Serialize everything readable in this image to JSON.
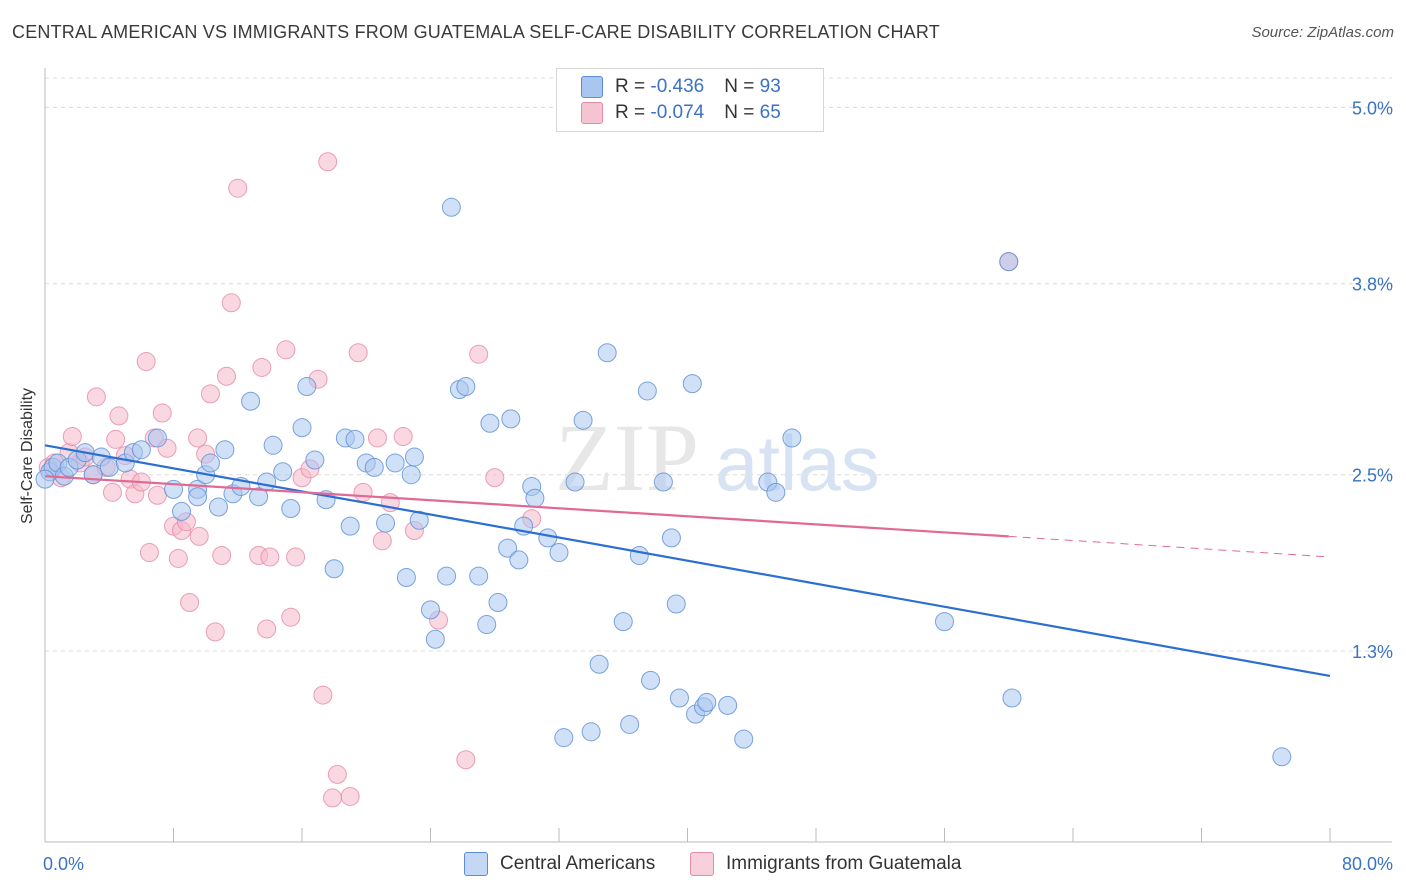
{
  "title": "CENTRAL AMERICAN VS IMMIGRANTS FROM GUATEMALA SELF-CARE DISABILITY CORRELATION CHART",
  "source": "Source: ZipAtlas.com",
  "watermark": {
    "zip": "ZIP",
    "atlas": "atlas"
  },
  "legend": {
    "rows": [
      {
        "r_label": "R = ",
        "r_value": "-0.436",
        "n_label": "N = ",
        "n_value": "93"
      },
      {
        "r_label": "R = ",
        "r_value": "-0.074",
        "n_label": "N = ",
        "n_value": "65"
      }
    ]
  },
  "bottom_legend": [
    "Central Americans",
    "Immigrants from Guatemala"
  ],
  "colors": {
    "blue_fill": "#a9c6f0",
    "blue_stroke": "#5b8ed6",
    "blue_line": "#2d6fd0",
    "pink_fill": "#f5b8cb",
    "pink_stroke": "#e58aa8",
    "pink_line": "#e06a95",
    "axis_text": "#3a72c6",
    "grid": "#dcdcdc"
  },
  "chart_data": {
    "type": "scatter",
    "title": "CENTRAL AMERICAN VS IMMIGRANTS FROM GUATEMALA SELF-CARE DISABILITY CORRELATION CHART",
    "xlabel": "",
    "ylabel": "Self-Care Disability",
    "xlim": [
      0,
      80
    ],
    "ylim": [
      0.0,
      5.2
    ],
    "x_tick_labels": [
      "0.0%",
      "80.0%"
    ],
    "y_ticks": [
      1.3,
      2.5,
      3.8,
      5.0
    ],
    "y_tick_labels": [
      "1.3%",
      "2.5%",
      "3.8%",
      "5.0%"
    ],
    "grid": "horizontal dashed",
    "legend_position": "top-center",
    "series": [
      {
        "name": "Central Americans",
        "r": -0.436,
        "n": 93,
        "trend": {
          "x": [
            0,
            80
          ],
          "y": [
            2.7,
            1.13
          ]
        },
        "points": [
          [
            0.3,
            2.52
          ],
          [
            0.5,
            2.55
          ],
          [
            0.8,
            2.58
          ],
          [
            1.2,
            2.49
          ],
          [
            1.5,
            2.55
          ],
          [
            2.0,
            2.6
          ],
          [
            2.5,
            2.65
          ],
          [
            3.0,
            2.5
          ],
          [
            3.5,
            2.62
          ],
          [
            4.0,
            2.55
          ],
          [
            5.0,
            2.58
          ],
          [
            5.5,
            2.65
          ],
          [
            6.0,
            2.67
          ],
          [
            7.0,
            2.75
          ],
          [
            8.0,
            2.4
          ],
          [
            8.5,
            2.25
          ],
          [
            9.5,
            2.4
          ],
          [
            9.5,
            2.35
          ],
          [
            10.0,
            2.5
          ],
          [
            10.3,
            2.58
          ],
          [
            10.8,
            2.28
          ],
          [
            11.2,
            2.67
          ],
          [
            11.7,
            2.37
          ],
          [
            12.2,
            2.42
          ],
          [
            12.8,
            3.0
          ],
          [
            13.3,
            2.35
          ],
          [
            13.8,
            2.45
          ],
          [
            14.2,
            2.7
          ],
          [
            14.8,
            2.52
          ],
          [
            15.3,
            2.27
          ],
          [
            16.0,
            2.82
          ],
          [
            16.3,
            3.1
          ],
          [
            16.8,
            2.6
          ],
          [
            17.5,
            2.33
          ],
          [
            18.0,
            1.86
          ],
          [
            18.7,
            2.75
          ],
          [
            19.0,
            2.15
          ],
          [
            19.3,
            2.74
          ],
          [
            20.0,
            2.58
          ],
          [
            20.5,
            2.55
          ],
          [
            21.2,
            2.17
          ],
          [
            21.8,
            2.58
          ],
          [
            22.5,
            1.8
          ],
          [
            22.8,
            2.5
          ],
          [
            23.0,
            2.62
          ],
          [
            23.3,
            2.19
          ],
          [
            24.0,
            1.58
          ],
          [
            24.3,
            1.38
          ],
          [
            25.0,
            1.81
          ],
          [
            25.3,
            4.32
          ],
          [
            25.8,
            3.08
          ],
          [
            26.2,
            3.1
          ],
          [
            27.0,
            1.81
          ],
          [
            27.5,
            1.48
          ],
          [
            27.7,
            2.85
          ],
          [
            28.2,
            1.63
          ],
          [
            28.8,
            2.0
          ],
          [
            29.0,
            2.88
          ],
          [
            29.5,
            1.92
          ],
          [
            29.8,
            2.15
          ],
          [
            30.3,
            2.42
          ],
          [
            30.5,
            2.34
          ],
          [
            31.3,
            2.07
          ],
          [
            32.0,
            1.97
          ],
          [
            32.3,
            0.71
          ],
          [
            33.0,
            2.45
          ],
          [
            33.5,
            2.87
          ],
          [
            34.0,
            0.75
          ],
          [
            34.5,
            1.21
          ],
          [
            35.0,
            3.33
          ],
          [
            36.0,
            1.5
          ],
          [
            36.4,
            0.8
          ],
          [
            37.0,
            1.95
          ],
          [
            37.5,
            3.07
          ],
          [
            37.7,
            1.1
          ],
          [
            38.5,
            2.45
          ],
          [
            39.0,
            2.07
          ],
          [
            39.3,
            1.62
          ],
          [
            39.5,
            0.98
          ],
          [
            40.3,
            3.12
          ],
          [
            40.5,
            0.87
          ],
          [
            41.0,
            0.92
          ],
          [
            41.2,
            0.95
          ],
          [
            42.5,
            0.93
          ],
          [
            43.5,
            0.7
          ],
          [
            45.0,
            2.45
          ],
          [
            45.5,
            2.38
          ],
          [
            46.5,
            2.75
          ],
          [
            56.0,
            1.5
          ],
          [
            60.0,
            3.95
          ],
          [
            60.2,
            0.98
          ],
          [
            77.0,
            0.58
          ],
          [
            0.0,
            2.47
          ]
        ]
      },
      {
        "name": "Immigrants from Guatemala",
        "r": -0.074,
        "n": 65,
        "trend": {
          "x": [
            0,
            60
          ],
          "y": [
            2.49,
            2.08
          ]
        },
        "trend_dashed": {
          "x": [
            60,
            80
          ],
          "y": [
            2.08,
            1.94
          ]
        },
        "points": [
          [
            0.2,
            2.55
          ],
          [
            0.6,
            2.58
          ],
          [
            1.0,
            2.48
          ],
          [
            1.5,
            2.65
          ],
          [
            1.7,
            2.76
          ],
          [
            2.2,
            2.58
          ],
          [
            2.5,
            2.62
          ],
          [
            3.0,
            2.5
          ],
          [
            3.2,
            3.03
          ],
          [
            3.8,
            2.55
          ],
          [
            4.2,
            2.38
          ],
          [
            4.4,
            2.74
          ],
          [
            4.6,
            2.9
          ],
          [
            5.0,
            2.63
          ],
          [
            5.3,
            2.47
          ],
          [
            5.6,
            2.37
          ],
          [
            6.0,
            2.45
          ],
          [
            6.3,
            3.27
          ],
          [
            6.5,
            1.97
          ],
          [
            6.8,
            2.75
          ],
          [
            7.0,
            2.36
          ],
          [
            7.3,
            2.92
          ],
          [
            7.6,
            2.68
          ],
          [
            8.0,
            2.15
          ],
          [
            8.3,
            1.93
          ],
          [
            8.5,
            2.12
          ],
          [
            8.8,
            2.18
          ],
          [
            9.0,
            1.63
          ],
          [
            9.5,
            2.75
          ],
          [
            9.6,
            2.08
          ],
          [
            10.0,
            2.64
          ],
          [
            10.3,
            3.05
          ],
          [
            10.6,
            1.43
          ],
          [
            11.0,
            1.95
          ],
          [
            11.3,
            3.17
          ],
          [
            11.6,
            3.67
          ],
          [
            12.0,
            4.45
          ],
          [
            13.3,
            1.95
          ],
          [
            13.5,
            3.23
          ],
          [
            13.8,
            1.45
          ],
          [
            14.0,
            1.94
          ],
          [
            15.0,
            3.35
          ],
          [
            15.3,
            1.53
          ],
          [
            15.6,
            1.94
          ],
          [
            16.0,
            2.48
          ],
          [
            16.5,
            2.54
          ],
          [
            17.0,
            3.15
          ],
          [
            17.3,
            1.0
          ],
          [
            17.6,
            4.63
          ],
          [
            17.9,
            0.3
          ],
          [
            18.2,
            0.46
          ],
          [
            19.0,
            0.31
          ],
          [
            19.5,
            3.33
          ],
          [
            19.8,
            2.38
          ],
          [
            20.7,
            2.75
          ],
          [
            21.0,
            2.05
          ],
          [
            21.5,
            2.31
          ],
          [
            22.3,
            2.76
          ],
          [
            23.0,
            2.12
          ],
          [
            24.5,
            1.51
          ],
          [
            26.2,
            0.56
          ],
          [
            27.0,
            3.32
          ],
          [
            28.0,
            2.48
          ],
          [
            30.3,
            2.2
          ],
          [
            60.0,
            3.95
          ]
        ]
      }
    ]
  }
}
